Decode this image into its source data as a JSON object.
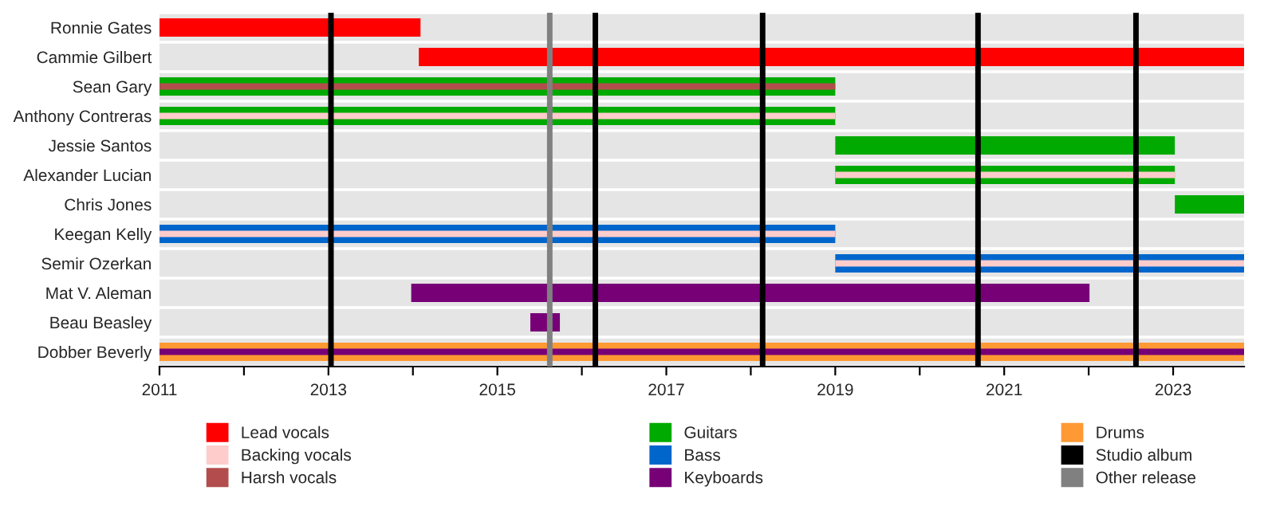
{
  "chart_data": {
    "type": "bar",
    "orientation": "horizontal",
    "categories": [
      "Ronnie Gates",
      "Cammie Gilbert",
      "Sean Gary",
      "Anthony Contreras",
      "Jessie Santos",
      "Alexander Lucian",
      "Chris Jones",
      "Keegan Kelly",
      "Semir Ozerkan",
      "Mat V. Aleman",
      "Beau Beasley",
      "Dobber Beverly"
    ],
    "series": [
      {
        "name": "Lead vocals",
        "color": "#ff0000",
        "base": [
          2011,
          2014.07,
          null,
          null,
          null,
          null,
          null,
          null,
          null,
          null,
          null,
          null
        ],
        "values": [
          3.09,
          9.77,
          null,
          null,
          null,
          null,
          null,
          null,
          null,
          null,
          null,
          null
        ]
      },
      {
        "name": "Backing vocals",
        "color": "#ffcccc",
        "base": [
          null,
          null,
          null,
          2011,
          null,
          2019,
          null,
          2011,
          2019,
          null,
          null,
          null
        ],
        "values": [
          null,
          null,
          null,
          8,
          null,
          4.02,
          null,
          8,
          4.84,
          null,
          null,
          null
        ]
      },
      {
        "name": "Harsh vocals",
        "color": "#b34d4d",
        "base": [
          null,
          null,
          2011,
          null,
          null,
          null,
          null,
          null,
          null,
          null,
          null,
          null
        ],
        "values": [
          null,
          null,
          8,
          null,
          null,
          null,
          null,
          null,
          null,
          null,
          null,
          null
        ]
      },
      {
        "name": "Guitars",
        "color": "#00aa00",
        "base": [
          null,
          null,
          2011,
          2011,
          2019,
          2019,
          2023.02,
          null,
          null,
          null,
          null,
          null
        ],
        "values": [
          null,
          null,
          8,
          8,
          4.02,
          4.02,
          0.82,
          null,
          null,
          null,
          null,
          null
        ]
      },
      {
        "name": "Bass",
        "color": "#0066cc",
        "base": [
          null,
          null,
          null,
          null,
          null,
          null,
          null,
          2011,
          2019,
          null,
          null,
          null
        ],
        "values": [
          null,
          null,
          null,
          null,
          null,
          null,
          null,
          8,
          4.84,
          null,
          null,
          null
        ]
      },
      {
        "name": "Keyboards",
        "color": "#770077",
        "base": [
          null,
          null,
          null,
          null,
          null,
          null,
          null,
          null,
          null,
          2013.98,
          2015.39,
          2011
        ],
        "values": [
          null,
          null,
          null,
          null,
          null,
          null,
          null,
          null,
          null,
          8.03,
          0.35,
          12.84
        ]
      },
      {
        "name": "Drums",
        "color": "#ff9933",
        "base": [
          null,
          null,
          null,
          null,
          null,
          null,
          null,
          null,
          null,
          null,
          null,
          2011
        ],
        "values": [
          null,
          null,
          null,
          null,
          null,
          null,
          null,
          null,
          null,
          null,
          null,
          12.84
        ]
      }
    ],
    "ref_lines": [
      {
        "axis": "x",
        "value": 2013.03,
        "label": "Studio album",
        "color": "#000000"
      },
      {
        "axis": "x",
        "value": 2015.62,
        "label": "Other release",
        "color": "#808080"
      },
      {
        "axis": "x",
        "value": 2016.16,
        "color": "#000000"
      },
      {
        "axis": "x",
        "value": 2018.14,
        "color": "#000000"
      },
      {
        "axis": "x",
        "value": 2020.69,
        "color": "#000000"
      },
      {
        "axis": "x",
        "value": 2022.56,
        "color": "#000000"
      }
    ],
    "xlim": [
      2011,
      2023.84
    ],
    "xticks": [
      2011,
      {
        "value": 2012,
        "label": null
      },
      2013,
      {
        "value": 2014,
        "label": null
      },
      2015,
      {
        "value": 2016,
        "label": null
      },
      2017,
      {
        "value": 2018,
        "label": null
      },
      2019,
      {
        "value": 2020,
        "label": null
      },
      2021,
      {
        "value": 2022,
        "label": null
      },
      2023
    ],
    "grid": "y",
    "legend": "bottom"
  }
}
